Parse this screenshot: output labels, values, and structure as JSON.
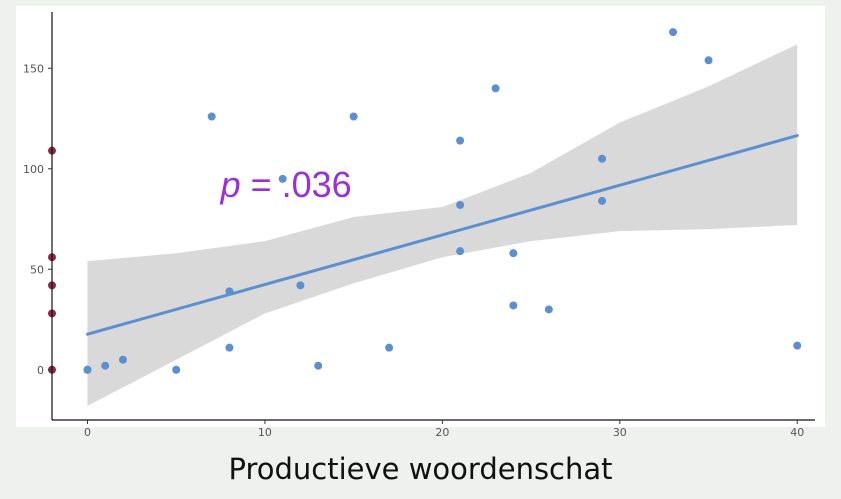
{
  "chart_data": {
    "type": "scatter",
    "title": "",
    "xlabel": "Productieve woordenschat",
    "ylabel": "",
    "xlim": [
      -2,
      41
    ],
    "ylim": [
      -25,
      178
    ],
    "x_ticks": [
      0,
      10,
      20,
      30,
      40
    ],
    "y_ticks": [
      0,
      50,
      100,
      150
    ],
    "grid": false,
    "annotation": {
      "italic": "p",
      "rest": " = .036",
      "x": 7.5,
      "y": 86
    },
    "colors": {
      "points": "#5b8fd0",
      "rug_points": "#8c2a45",
      "fit_line": "#5b8fd0",
      "ci_band": "#d9d9d9",
      "annotation": "#9b30d8",
      "panel": "#ffffff",
      "background": "#eef1ee"
    },
    "fit": {
      "intercept": 17.7,
      "slope": 2.47
    },
    "ci_band": [
      {
        "x": 0,
        "lo": -18,
        "hi": 54
      },
      {
        "x": 5,
        "lo": 5,
        "hi": 58
      },
      {
        "x": 10,
        "lo": 28,
        "hi": 64
      },
      {
        "x": 15,
        "lo": 43,
        "hi": 76
      },
      {
        "x": 20,
        "lo": 56,
        "hi": 81
      },
      {
        "x": 25,
        "lo": 64,
        "hi": 98
      },
      {
        "x": 30,
        "lo": 69,
        "hi": 123
      },
      {
        "x": 35,
        "lo": 70,
        "hi": 141
      },
      {
        "x": 40,
        "lo": 72,
        "hi": 162
      }
    ],
    "points": [
      {
        "x": 0,
        "y": 0
      },
      {
        "x": 0,
        "y": 0
      },
      {
        "x": 1,
        "y": 2
      },
      {
        "x": 2,
        "y": 5
      },
      {
        "x": 5,
        "y": 0
      },
      {
        "x": 7,
        "y": 126
      },
      {
        "x": 8,
        "y": 39
      },
      {
        "x": 8,
        "y": 11
      },
      {
        "x": 11,
        "y": 95
      },
      {
        "x": 12,
        "y": 42
      },
      {
        "x": 13,
        "y": 2
      },
      {
        "x": 15,
        "y": 126
      },
      {
        "x": 17,
        "y": 11
      },
      {
        "x": 21,
        "y": 114
      },
      {
        "x": 21,
        "y": 82
      },
      {
        "x": 21,
        "y": 59
      },
      {
        "x": 23,
        "y": 140
      },
      {
        "x": 24,
        "y": 58
      },
      {
        "x": 24,
        "y": 32
      },
      {
        "x": 26,
        "y": 30
      },
      {
        "x": 29,
        "y": 105
      },
      {
        "x": 29,
        "y": 84
      },
      {
        "x": 33,
        "y": 168
      },
      {
        "x": 35,
        "y": 154
      },
      {
        "x": 40,
        "y": 12
      }
    ],
    "rug_points": [
      {
        "x": -2,
        "y": 109
      },
      {
        "x": -2,
        "y": 56
      },
      {
        "x": -2,
        "y": 42
      },
      {
        "x": -2,
        "y": 28
      },
      {
        "x": -2,
        "y": 0
      }
    ]
  }
}
